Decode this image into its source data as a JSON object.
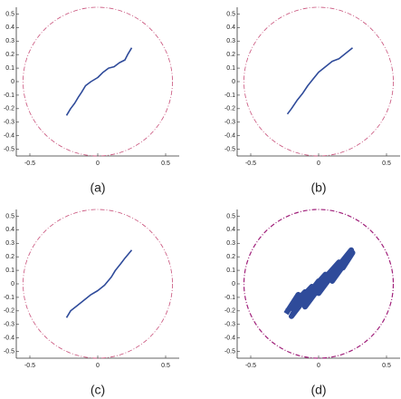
{
  "chart_data": [
    {
      "type": "line",
      "label": "(a)",
      "color": "#2f4b9a",
      "circle_radius": 0.55,
      "circle_color": "#c8507a",
      "x": [
        -0.23,
        -0.2,
        -0.17,
        -0.14,
        -0.12,
        -0.09,
        -0.05,
        0,
        0.04,
        0.08,
        0.12,
        0.16,
        0.2,
        0.22,
        0.25
      ],
      "values": [
        -0.25,
        -0.2,
        -0.16,
        -0.11,
        -0.08,
        -0.03,
        0,
        0.03,
        0.07,
        0.1,
        0.11,
        0.14,
        0.16,
        0.2,
        0.25
      ],
      "xlim": [
        -0.6,
        0.6
      ],
      "ylim": [
        -0.55,
        0.55
      ],
      "xticks": [
        -0.5,
        0,
        0.5
      ],
      "yticks": [
        -0.5,
        -0.4,
        -0.3,
        -0.2,
        -0.1,
        0,
        0.1,
        0.2,
        0.3,
        0.4,
        0.5
      ]
    },
    {
      "type": "line",
      "label": "(b)",
      "color": "#2f4b9a",
      "circle_radius": 0.55,
      "circle_color": "#c8507a",
      "x": [
        -0.23,
        -0.2,
        -0.16,
        -0.12,
        -0.08,
        -0.04,
        0,
        0.05,
        0.1,
        0.15,
        0.2,
        0.25
      ],
      "values": [
        -0.24,
        -0.2,
        -0.14,
        -0.09,
        -0.03,
        0.02,
        0.07,
        0.11,
        0.15,
        0.17,
        0.21,
        0.25
      ],
      "xlim": [
        -0.6,
        0.6
      ],
      "ylim": [
        -0.55,
        0.55
      ],
      "xticks": [
        -0.5,
        0,
        0.5
      ],
      "yticks": [
        -0.5,
        -0.4,
        -0.3,
        -0.2,
        -0.1,
        0,
        0.1,
        0.2,
        0.3,
        0.4,
        0.5
      ]
    },
    {
      "type": "line",
      "label": "(c)",
      "color": "#2f4b9a",
      "circle_radius": 0.55,
      "circle_color": "#c8507a",
      "x": [
        -0.23,
        -0.2,
        -0.15,
        -0.1,
        -0.05,
        0,
        0.05,
        0.1,
        0.13,
        0.17,
        0.2,
        0.25
      ],
      "values": [
        -0.25,
        -0.2,
        -0.16,
        -0.12,
        -0.08,
        -0.05,
        -0.01,
        0.05,
        0.1,
        0.15,
        0.19,
        0.25
      ],
      "xlim": [
        -0.6,
        0.6
      ],
      "ylim": [
        -0.55,
        0.55
      ],
      "xticks": [
        -0.5,
        0,
        0.5
      ],
      "yticks": [
        -0.5,
        -0.4,
        -0.3,
        -0.2,
        -0.1,
        0,
        0.1,
        0.2,
        0.3,
        0.4,
        0.5
      ]
    },
    {
      "type": "line",
      "label": "(d)",
      "color": "#2f4b9a",
      "circle_radius": 0.55,
      "circle_color": "#a0207a",
      "x": [
        -0.24,
        -0.15,
        -0.2,
        -0.05,
        -0.12,
        0.05,
        -0.02,
        0.15,
        0.08,
        0.24,
        0.18,
        0.25,
        0.1,
        0.2,
        0,
        0.1,
        -0.1,
        0,
        -0.2,
        -0.1,
        -0.23
      ],
      "values": [
        -0.22,
        -0.08,
        -0.18,
        -0.02,
        -0.12,
        0.07,
        -0.03,
        0.16,
        0.05,
        0.25,
        0.12,
        0.23,
        0.02,
        0.2,
        -0.07,
        0.1,
        -0.17,
        0.02,
        -0.24,
        -0.06,
        -0.2
      ],
      "xlim": [
        -0.6,
        0.6
      ],
      "ylim": [
        -0.55,
        0.55
      ],
      "xticks": [
        -0.5,
        0,
        0.5
      ],
      "yticks": [
        -0.5,
        -0.4,
        -0.3,
        -0.2,
        -0.1,
        0,
        0.1,
        0.2,
        0.3,
        0.4,
        0.5
      ]
    }
  ]
}
